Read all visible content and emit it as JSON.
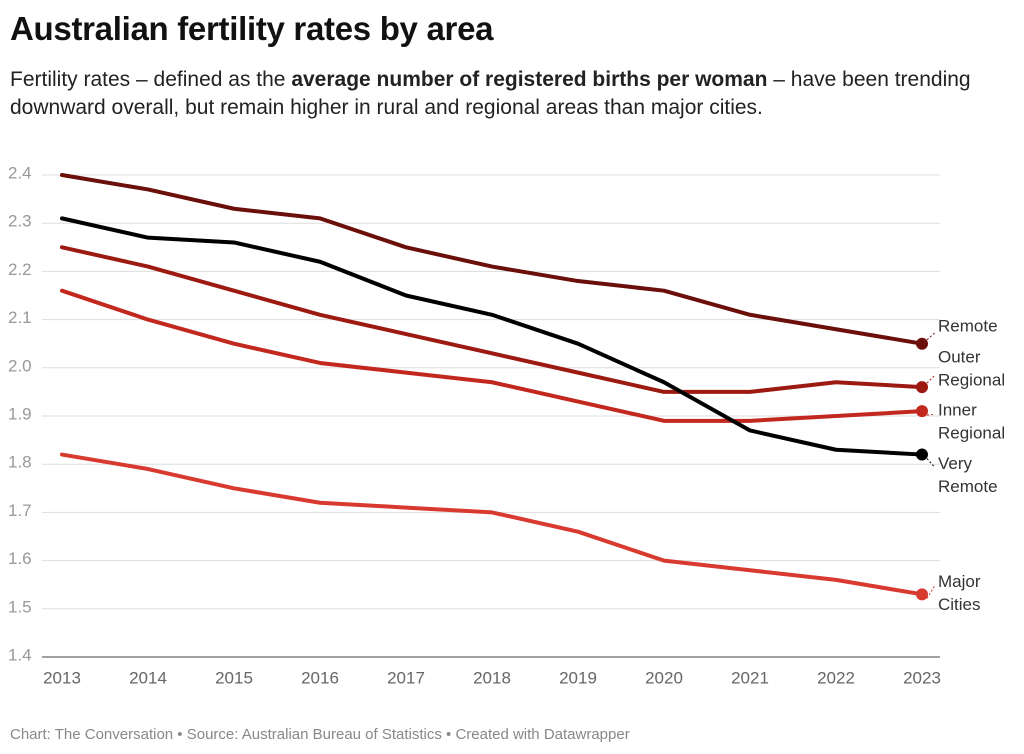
{
  "chart_data": {
    "type": "line",
    "title": "Australian fertility rates by area",
    "subtitle": [
      "Fertility rates – defined as the ",
      "average number of registered births per woman",
      " – have been trending downward overall, but remain higher in rural and regional areas than major cities."
    ],
    "footer": "Chart: The Conversation • Source: Australian Bureau of Statistics • Created with Datawrapper",
    "categories": [
      "2013",
      "2014",
      "2015",
      "2016",
      "2017",
      "2018",
      "2019",
      "2020",
      "2021",
      "2022",
      "2023"
    ],
    "series": [
      {
        "name": "Remote",
        "color": "#6b0f0a",
        "values": [
          2.4,
          2.37,
          2.33,
          2.31,
          2.25,
          2.21,
          2.18,
          2.16,
          2.11,
          2.08,
          2.05
        ]
      },
      {
        "name": "Outer Regional",
        "color": "#9c1a12",
        "values": [
          2.25,
          2.21,
          2.16,
          2.11,
          2.07,
          2.03,
          1.99,
          1.95,
          1.95,
          1.97,
          1.96
        ]
      },
      {
        "name": "Inner Regional",
        "color": "#c2281e",
        "values": [
          2.16,
          2.1,
          2.05,
          2.01,
          1.99,
          1.97,
          1.93,
          1.89,
          1.89,
          1.9,
          1.91
        ]
      },
      {
        "name": "Very Remote",
        "color": "#000000",
        "values": [
          2.31,
          2.27,
          2.26,
          2.22,
          2.15,
          2.11,
          2.05,
          1.97,
          1.87,
          1.83,
          1.82
        ]
      },
      {
        "name": "Major Cities",
        "color": "#d93a2f",
        "values": [
          1.82,
          1.79,
          1.75,
          1.72,
          1.71,
          1.7,
          1.66,
          1.6,
          1.58,
          1.56,
          1.53
        ]
      }
    ],
    "ylim": [
      1.4,
      2.4
    ],
    "yticks": [
      1.4,
      1.5,
      1.6,
      1.7,
      1.8,
      1.9,
      {
        "value": 2,
        "label": "2.0"
      },
      2.1,
      2.2,
      2.3,
      2.4
    ],
    "grid": true
  }
}
